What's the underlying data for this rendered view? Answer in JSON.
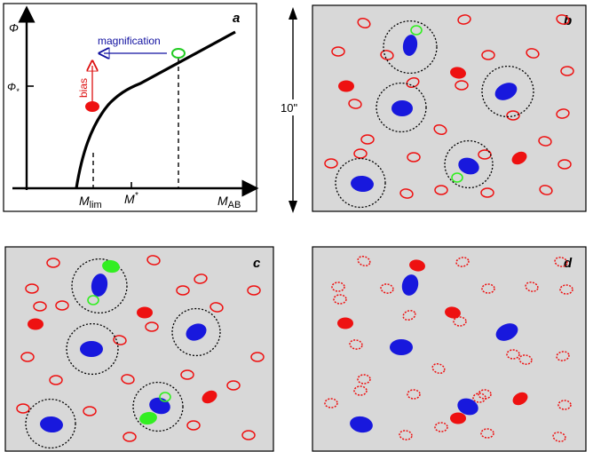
{
  "panel_a": {
    "letter": "a",
    "y_axis_label": "Φ",
    "y_tick_label": "Φ",
    "y_tick_sub": "*",
    "x_axis_label": "M",
    "x_axis_sub": "AB",
    "x_tick1_label": "M",
    "x_tick1_sub": "lim",
    "x_tick2_label": "M",
    "x_tick2_sub": "*",
    "annotation_magnification": "magnification",
    "annotation_bias": "bias",
    "colors": {
      "magnification": "#1010a0",
      "bias": "#dd1111",
      "green": "#22cc22"
    }
  },
  "panel_b": {
    "letter": "b"
  },
  "panel_c": {
    "letter": "c"
  },
  "panel_d": {
    "letter": "d"
  },
  "scale": {
    "label": "10\""
  },
  "colors": {
    "panel_bg": "#d8d8d8",
    "red": "#ee1111",
    "blue": "#1818dd",
    "green": "#33ee22"
  }
}
